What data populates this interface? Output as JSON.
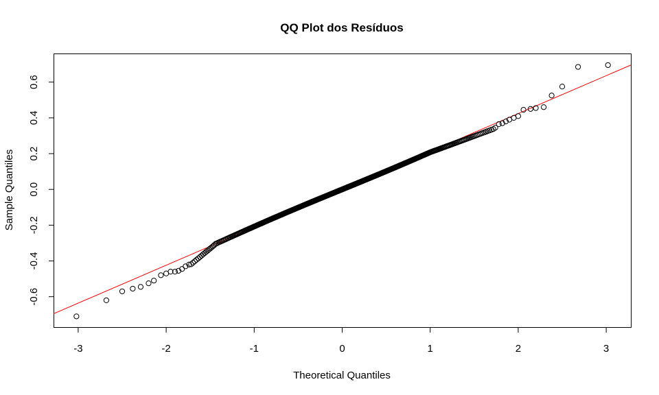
{
  "chart_data": {
    "type": "scatter",
    "title": "QQ Plot dos Resíduos",
    "xlabel": "Theoretical Quantiles",
    "ylabel": "Sample Quantiles",
    "xlim": [
      -3.28,
      3.28
    ],
    "ylim": [
      -0.77,
      0.76
    ],
    "xticks": [
      -3,
      -2,
      -1,
      0,
      1,
      2,
      3
    ],
    "yticks": [
      -0.6,
      -0.4,
      -0.2,
      0.0,
      0.2,
      0.4,
      0.6
    ],
    "ytick_labels": [
      "-0.6",
      "-0.4",
      "-0.2",
      "0.0",
      "0.2",
      "0.4",
      "0.6"
    ],
    "grid": false,
    "point_color": "#000000",
    "reference_line": {
      "color": "#ff0000",
      "intercept": 0.0,
      "slope": 0.212
    },
    "series": [
      {
        "n_points": 500,
        "tail_points": [
          [
            -3.02,
            -0.71
          ],
          [
            -2.68,
            -0.62
          ],
          [
            -2.5,
            -0.57
          ],
          [
            -2.38,
            -0.555
          ],
          [
            -2.29,
            -0.545
          ],
          [
            -2.2,
            -0.525
          ],
          [
            -2.14,
            -0.51
          ],
          [
            -2.06,
            -0.48
          ],
          [
            -2.0,
            -0.47
          ],
          [
            -1.95,
            -0.46
          ],
          [
            -1.9,
            -0.46
          ],
          [
            -1.86,
            -0.455
          ],
          [
            -1.82,
            -0.445
          ],
          [
            -1.78,
            -0.43
          ],
          [
            -1.74,
            -0.42
          ],
          [
            1.74,
            0.345
          ],
          [
            1.78,
            0.365
          ],
          [
            1.82,
            0.37
          ],
          [
            1.86,
            0.38
          ],
          [
            1.9,
            0.39
          ],
          [
            1.95,
            0.4
          ],
          [
            2.0,
            0.41
          ],
          [
            2.06,
            0.445
          ],
          [
            2.14,
            0.45
          ],
          [
            2.2,
            0.455
          ],
          [
            2.29,
            0.46
          ],
          [
            2.38,
            0.525
          ],
          [
            2.5,
            0.575
          ],
          [
            2.68,
            0.685
          ],
          [
            3.02,
            0.695
          ]
        ]
      }
    ]
  }
}
